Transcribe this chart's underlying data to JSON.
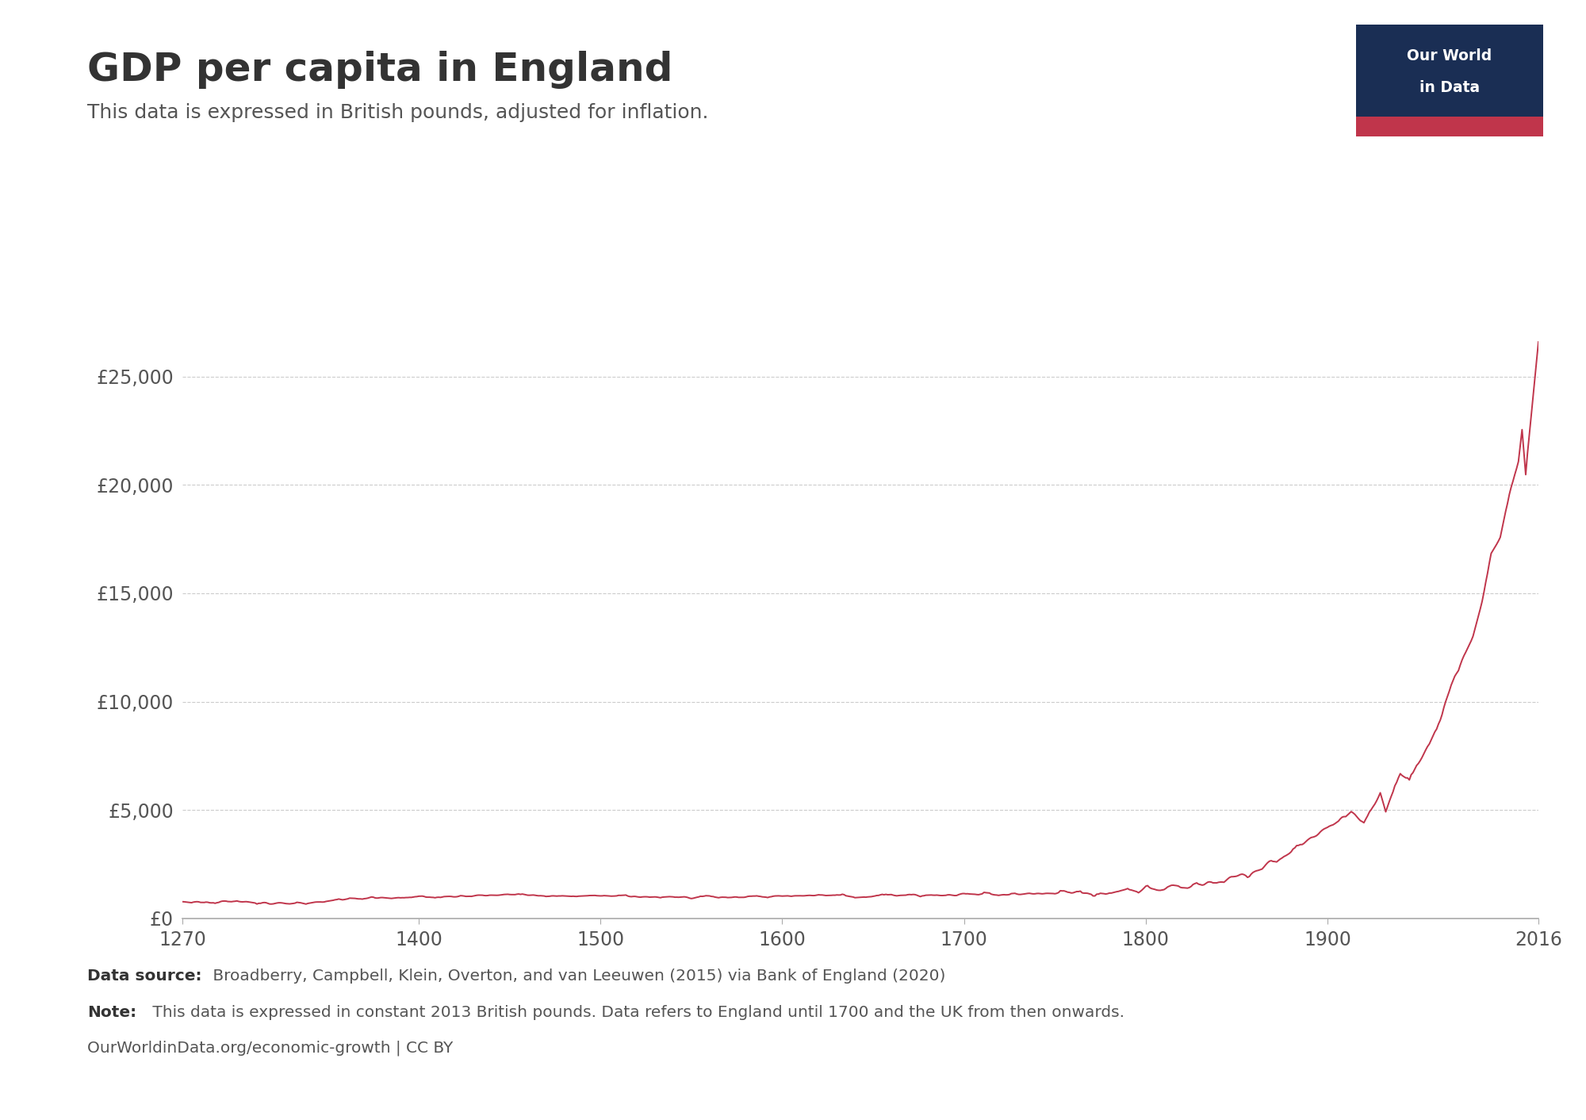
{
  "title": "GDP per capita in England",
  "subtitle": "This data is expressed in British pounds, adjusted for inflation.",
  "line_color": "#c0354b",
  "background_color": "#ffffff",
  "yticks": [
    0,
    5000,
    10000,
    15000,
    20000,
    25000
  ],
  "ytick_labels": [
    "£0",
    "£5,000",
    "£10,000",
    "£15,000",
    "£20,000",
    "£25,000"
  ],
  "xlabel_ticks": [
    1270,
    1400,
    1500,
    1600,
    1700,
    1800,
    1900,
    2016
  ],
  "xlim": [
    1270,
    2016
  ],
  "ylim": [
    0,
    31000
  ],
  "footer_source_bold": "Data source:",
  "footer_source": " Broadberry, Campbell, Klein, Overton, and van Leeuwen (2015) via Bank of England (2020)",
  "footer_note_bold": "Note:",
  "footer_note": " This data is expressed in constant 2013 British pounds. Data refers to England until 1700 and the UK from then onwards.",
  "footer_url": "OurWorldinData.org/economic-growth | CC BY",
  "owid_box_color": "#1a2e54",
  "owid_red": "#c0354b",
  "grid_color": "#cccccc",
  "axis_color": "#aaaaaa",
  "text_color": "#333333",
  "label_color": "#555555"
}
